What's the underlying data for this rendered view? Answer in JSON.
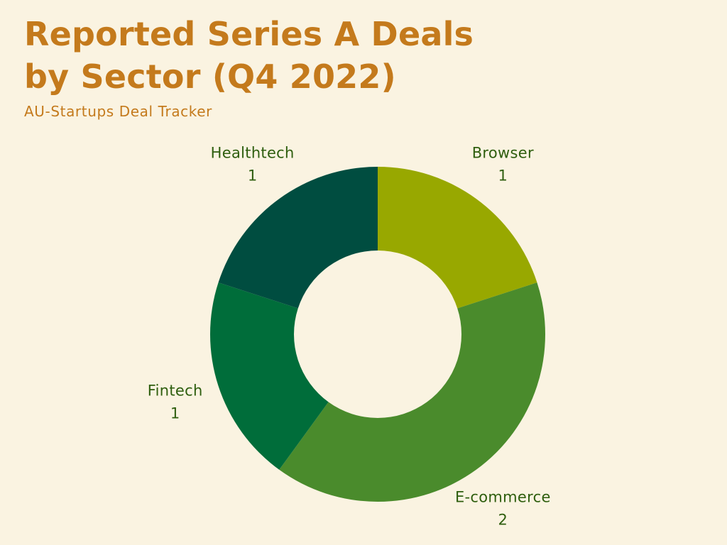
{
  "header": {
    "title_line1": "Reported Series A Deals",
    "title_line2": "by Sector (Q4 2022)",
    "subtitle": "AU-Startups Deal Tracker"
  },
  "colors": {
    "background": "#FAF3E1",
    "title": "#C47A1C",
    "label": "#2E5E0E"
  },
  "chart_data": {
    "type": "pie",
    "donut": true,
    "title": "Reported Series A Deals by Sector (Q4 2022)",
    "subtitle": "AU-Startups Deal Tracker",
    "start_angle_deg": 0,
    "direction": "clockwise",
    "legend": "none",
    "slices": [
      {
        "label": "Browser",
        "value": 1,
        "color": "#98A800"
      },
      {
        "label": "E-commerce",
        "value": 2,
        "color": "#4A8B2C"
      },
      {
        "label": "Fintech",
        "value": 1,
        "color": "#006D3A"
      },
      {
        "label": "Healthtech",
        "value": 1,
        "color": "#004D40"
      }
    ]
  }
}
